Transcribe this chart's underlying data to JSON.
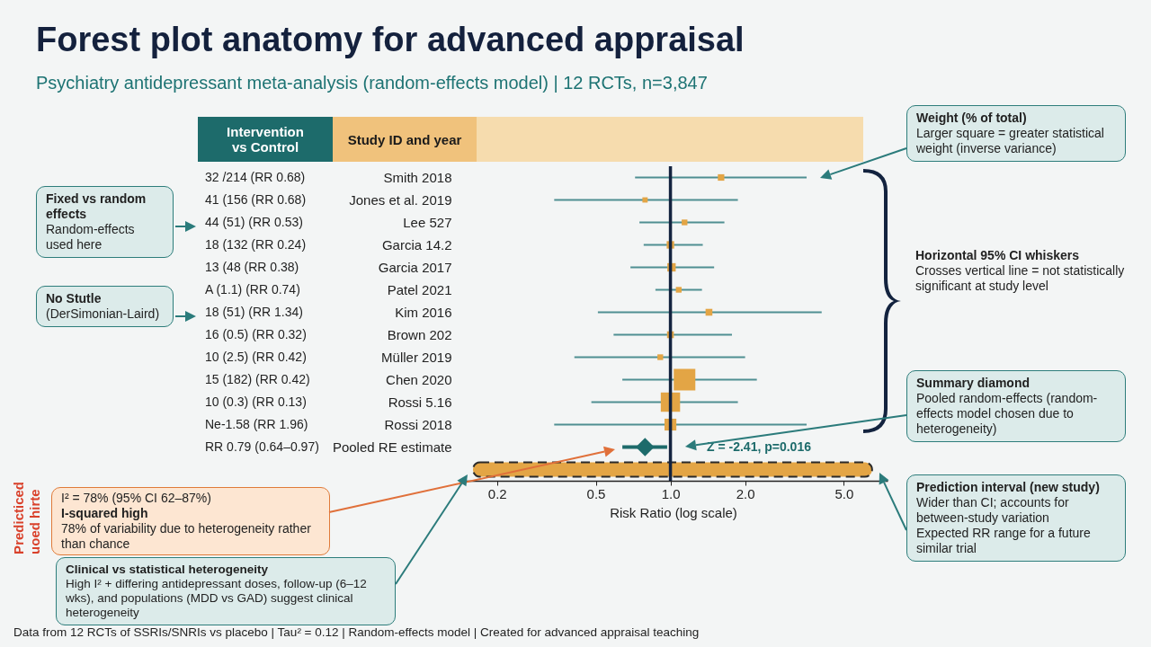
{
  "chart_data": {
    "type": "bubble",
    "orientation": "horizontal",
    "title": "Forest plot anatomy for advanced appraisal",
    "subtitle": "Psychiatry antidepressant meta-analysis (random-effects model) | 12 RCTs, n=3,847",
    "xlabel": "Risk Ratio (log scale)",
    "log": "x",
    "xlim": [
      0.14,
      7.5
    ],
    "xticks": [
      0.2,
      0.5,
      {
        "value": 1,
        "label": "1.0"
      },
      {
        "value": 2,
        "label": "2.0"
      },
      {
        "value": 5,
        "label": "5.0"
      }
    ],
    "categories": [
      "Smith 2018",
      "Jones et al. 2019",
      "Lee 527",
      "Garcia 14.2",
      "Garcia 2017",
      "Patel 2021",
      "Kim 2016",
      "Brown 202",
      "Müller 2019",
      "Chen 2020",
      "Rossi 5.16",
      "Rossi 2018",
      "Pooled RE estimate",
      null
    ],
    "series": [
      {
        "marker": "square",
        "color": "#e3a545",
        "values": [
          1.6,
          0.79,
          1.14,
          1.0,
          1.01,
          1.08,
          1.43,
          1.0,
          0.91,
          1.14,
          1.0,
          1.0,
          null,
          null
        ],
        "errors": [
          [
            0.72,
            3.54
          ],
          [
            0.34,
            1.87
          ],
          [
            0.75,
            1.65
          ],
          [
            0.78,
            1.35
          ],
          [
            0.69,
            1.5
          ],
          [
            0.87,
            1.34
          ],
          [
            0.51,
            4.07
          ],
          [
            0.59,
            1.77
          ],
          [
            0.41,
            2.0
          ],
          [
            0.64,
            2.23
          ],
          [
            0.48,
            1.87
          ],
          [
            0.34,
            3.54
          ],
          null,
          null
        ],
        "sizes": [
          0.09,
          0.06,
          0.07,
          0.12,
          0.15,
          0.07,
          0.1,
          0.1,
          0.07,
          1,
          0.8,
          0.3,
          null,
          null
        ]
      },
      {
        "type": "scatter",
        "marker": "diamond",
        "color": "#1d6b6b",
        "values": [
          null,
          null,
          null,
          null,
          null,
          null,
          null,
          null,
          null,
          null,
          null,
          null,
          0.79,
          null
        ],
        "errors": [
          null,
          null,
          null,
          null,
          null,
          null,
          null,
          null,
          null,
          null,
          null,
          null,
          [
            0.64,
            0.97
          ],
          null
        ]
      },
      {
        "type": "bar",
        "color": "#e3a545",
        "line_style": "dashed",
        "base": [
          null,
          null,
          null,
          null,
          null,
          null,
          null,
          null,
          null,
          null,
          null,
          null,
          null,
          0.16
        ],
        "values": [
          null,
          null,
          null,
          null,
          null,
          null,
          null,
          null,
          null,
          null,
          null,
          null,
          null,
          6.34
        ]
      }
    ],
    "ref_lines": [
      {
        "axis": "x",
        "value": 1,
        "color": "#13233f"
      }
    ],
    "annotations": [
      "Study ID and year",
      "Intervention\nvs Control",
      "32 /214 (RR 0.68)\n41 (156 (RR 0.68)\n44 (51) (RR 0.53)\n18 (132 (RR 0.24)\n13 (48 (RR 0.38)\nA (1.1) (RR 0.74)\n18 (51) (RR 1.34)\n16 (0.5) (RR 0.32)\n10 (2.5) (RR 0.42)\n15 (182) (RR 0.42)\n10 (0.3) (RR 0.13)\nNe-1.58 (RR 1.96)\nRR 0.79 (0.64–0.97)",
      "Z = -2.41, p=0.016",
      "Weight (% of total)\nLarger square = greater statistical weight (inverse variance)",
      "Horizontal 95% CI whiskers\nCrosses vertical line = not statistically significant at study level",
      "Summary diamond\nPooled random-effects (random-effects model chosen due to heterogeneity)",
      "Prediction interval (new study)\nWider than CI; accounts for between-study variation\nExpected RR range for a future similar trial",
      "Fixed vs random effects\nRandom-effects used here",
      "No Stutle\n(DerSimonian-Laird)",
      "I² = 78% (95% CI 62–87%)\nI-squared high\n78% of variability due to heterogeneity rather than chance",
      "Predicticed\nuoed hirte",
      "Clinical vs statistical heterogeneity\nHigh I² + differing antidepressant doses, follow-up (6–12 wks), and populations (MDD vs GAD) suggest clinical heterogeneity",
      "Data from 12 RCTs of SSRIs/SNRIs vs placebo | Tau² = 0.12 | Random-effects model | Created for advanced appraisal teaching"
    ]
  }
}
